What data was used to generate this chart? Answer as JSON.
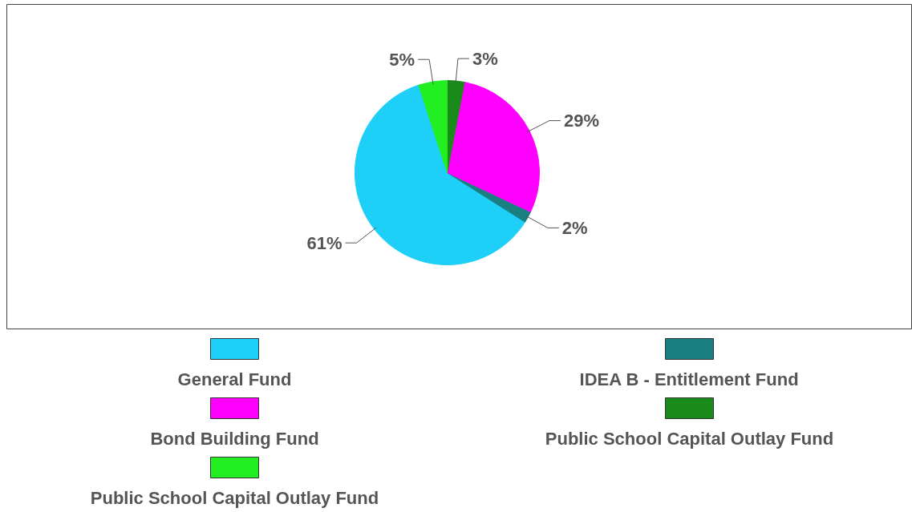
{
  "chart_data": {
    "type": "pie",
    "categories": [
      "General Fund",
      "IDEA B - Entitlement Fund",
      "Bond Building Fund",
      "Public School Capital Outlay Fund",
      "Public School Capital Outlay Fund"
    ],
    "values": [
      61,
      2,
      29,
      3,
      5
    ],
    "value_labels": [
      "61%",
      "2%",
      "29%",
      "3%",
      "5%"
    ],
    "colors": [
      "#1ecff7",
      "#1a7f80",
      "#ff00ff",
      "#1a8a1a",
      "#22ee22"
    ],
    "legend": "bottom"
  }
}
